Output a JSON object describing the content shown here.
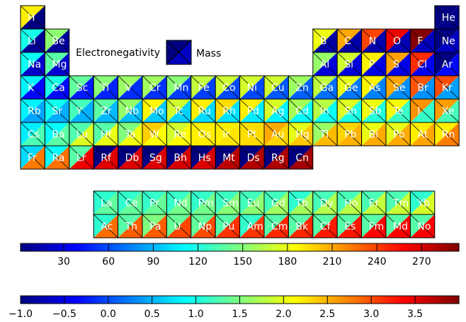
{
  "chart_data": {
    "type": "heatmap",
    "title": "",
    "legend": {
      "electronegativity_label": "Electronegativity",
      "mass_label": "Mass",
      "swatch_electronegativity_value": -1.0,
      "swatch_mass_value": 20
    },
    "mass_colorbar": {
      "min": 1,
      "max": 295,
      "ticks": [
        30,
        60,
        90,
        120,
        150,
        180,
        210,
        240,
        270
      ]
    },
    "electronegativity_colorbar": {
      "min": -1.0,
      "max": 4.0,
      "ticks": [
        -1.0,
        -0.5,
        0.0,
        0.5,
        1.0,
        1.5,
        2.0,
        2.5,
        3.0,
        3.5
      ]
    },
    "missing_electronegativity_value": -1.0,
    "elements": [
      {
        "symbol": "H",
        "group": 1,
        "period": 1,
        "mass": 1.008,
        "electronegativity": 2.2
      },
      {
        "symbol": "He",
        "group": 18,
        "period": 1,
        "mass": 4.003,
        "electronegativity": null
      },
      {
        "symbol": "Li",
        "group": 1,
        "period": 2,
        "mass": 6.94,
        "electronegativity": 0.98
      },
      {
        "symbol": "Be",
        "group": 2,
        "period": 2,
        "mass": 9.012,
        "electronegativity": 1.57
      },
      {
        "symbol": "B",
        "group": 13,
        "period": 2,
        "mass": 10.81,
        "electronegativity": 2.04
      },
      {
        "symbol": "C",
        "group": 14,
        "period": 2,
        "mass": 12.011,
        "electronegativity": 2.55
      },
      {
        "symbol": "N",
        "group": 15,
        "period": 2,
        "mass": 14.007,
        "electronegativity": 3.04
      },
      {
        "symbol": "O",
        "group": 16,
        "period": 2,
        "mass": 15.999,
        "electronegativity": 3.44
      },
      {
        "symbol": "F",
        "group": 17,
        "period": 2,
        "mass": 18.998,
        "electronegativity": 3.98
      },
      {
        "symbol": "Ne",
        "group": 18,
        "period": 2,
        "mass": 20.18,
        "electronegativity": null
      },
      {
        "symbol": "Na",
        "group": 1,
        "period": 3,
        "mass": 22.99,
        "electronegativity": 0.93
      },
      {
        "symbol": "Mg",
        "group": 2,
        "period": 3,
        "mass": 24.305,
        "electronegativity": 1.31
      },
      {
        "symbol": "Al",
        "group": 13,
        "period": 3,
        "mass": 26.982,
        "electronegativity": 1.61
      },
      {
        "symbol": "Si",
        "group": 14,
        "period": 3,
        "mass": 28.085,
        "electronegativity": 1.9
      },
      {
        "symbol": "P",
        "group": 15,
        "period": 3,
        "mass": 30.974,
        "electronegativity": 2.19
      },
      {
        "symbol": "S",
        "group": 16,
        "period": 3,
        "mass": 32.06,
        "electronegativity": 2.58
      },
      {
        "symbol": "Cl",
        "group": 17,
        "period": 3,
        "mass": 35.45,
        "electronegativity": 3.16
      },
      {
        "symbol": "Ar",
        "group": 18,
        "period": 3,
        "mass": 39.948,
        "electronegativity": null
      },
      {
        "symbol": "K",
        "group": 1,
        "period": 4,
        "mass": 39.098,
        "electronegativity": 0.82
      },
      {
        "symbol": "Ca",
        "group": 2,
        "period": 4,
        "mass": 40.078,
        "electronegativity": 1.0
      },
      {
        "symbol": "Sc",
        "group": 3,
        "period": 4,
        "mass": 44.956,
        "electronegativity": 1.36
      },
      {
        "symbol": "Ti",
        "group": 4,
        "period": 4,
        "mass": 47.867,
        "electronegativity": 1.54
      },
      {
        "symbol": "V",
        "group": 5,
        "period": 4,
        "mass": 50.942,
        "electronegativity": 1.63
      },
      {
        "symbol": "Cr",
        "group": 6,
        "period": 4,
        "mass": 51.996,
        "electronegativity": 1.66
      },
      {
        "symbol": "Mn",
        "group": 7,
        "period": 4,
        "mass": 54.938,
        "electronegativity": 1.55
      },
      {
        "symbol": "Fe",
        "group": 8,
        "period": 4,
        "mass": 55.845,
        "electronegativity": 1.83
      },
      {
        "symbol": "Co",
        "group": 9,
        "period": 4,
        "mass": 58.933,
        "electronegativity": 1.88
      },
      {
        "symbol": "Ni",
        "group": 10,
        "period": 4,
        "mass": 58.693,
        "electronegativity": 1.91
      },
      {
        "symbol": "Cu",
        "group": 11,
        "period": 4,
        "mass": 63.546,
        "electronegativity": 1.9
      },
      {
        "symbol": "Zn",
        "group": 12,
        "period": 4,
        "mass": 65.38,
        "electronegativity": 1.65
      },
      {
        "symbol": "Ga",
        "group": 13,
        "period": 4,
        "mass": 69.723,
        "electronegativity": 1.81
      },
      {
        "symbol": "Ge",
        "group": 14,
        "period": 4,
        "mass": 72.63,
        "electronegativity": 2.01
      },
      {
        "symbol": "As",
        "group": 15,
        "period": 4,
        "mass": 74.922,
        "electronegativity": 2.18
      },
      {
        "symbol": "Se",
        "group": 16,
        "period": 4,
        "mass": 78.971,
        "electronegativity": 2.55
      },
      {
        "symbol": "Br",
        "group": 17,
        "period": 4,
        "mass": 79.904,
        "electronegativity": 2.96
      },
      {
        "symbol": "Kr",
        "group": 18,
        "period": 4,
        "mass": 83.798,
        "electronegativity": 3.0
      },
      {
        "symbol": "Rb",
        "group": 1,
        "period": 5,
        "mass": 85.468,
        "electronegativity": 0.82
      },
      {
        "symbol": "Sr",
        "group": 2,
        "period": 5,
        "mass": 87.62,
        "electronegativity": 0.95
      },
      {
        "symbol": "Y",
        "group": 3,
        "period": 5,
        "mass": 88.906,
        "electronegativity": 1.22
      },
      {
        "symbol": "Zr",
        "group": 4,
        "period": 5,
        "mass": 91.224,
        "electronegativity": 1.33
      },
      {
        "symbol": "Nb",
        "group": 5,
        "period": 5,
        "mass": 92.906,
        "electronegativity": 1.6
      },
      {
        "symbol": "Mo",
        "group": 6,
        "period": 5,
        "mass": 95.95,
        "electronegativity": 2.16
      },
      {
        "symbol": "Tc",
        "group": 7,
        "period": 5,
        "mass": 98,
        "electronegativity": 1.9
      },
      {
        "symbol": "Ru",
        "group": 8,
        "period": 5,
        "mass": 101.07,
        "electronegativity": 2.2
      },
      {
        "symbol": "Rh",
        "group": 9,
        "period": 5,
        "mass": 102.91,
        "electronegativity": 2.28
      },
      {
        "symbol": "Pd",
        "group": 10,
        "period": 5,
        "mass": 106.42,
        "electronegativity": 2.2
      },
      {
        "symbol": "Ag",
        "group": 11,
        "period": 5,
        "mass": 107.87,
        "electronegativity": 1.93
      },
      {
        "symbol": "Cd",
        "group": 12,
        "period": 5,
        "mass": 112.41,
        "electronegativity": 1.69
      },
      {
        "symbol": "In",
        "group": 13,
        "period": 5,
        "mass": 114.82,
        "electronegativity": 1.78
      },
      {
        "symbol": "Sn",
        "group": 14,
        "period": 5,
        "mass": 118.71,
        "electronegativity": 1.96
      },
      {
        "symbol": "Sb",
        "group": 15,
        "period": 5,
        "mass": 121.76,
        "electronegativity": 2.05
      },
      {
        "symbol": "Te",
        "group": 16,
        "period": 5,
        "mass": 127.6,
        "electronegativity": 2.1
      },
      {
        "symbol": "I",
        "group": 17,
        "period": 5,
        "mass": 126.9,
        "electronegativity": 2.66
      },
      {
        "symbol": "Xe",
        "group": 18,
        "period": 5,
        "mass": 131.29,
        "electronegativity": 2.6
      },
      {
        "symbol": "Cs",
        "group": 1,
        "period": 6,
        "mass": 132.91,
        "electronegativity": 0.79
      },
      {
        "symbol": "Ba",
        "group": 2,
        "period": 6,
        "mass": 137.33,
        "electronegativity": 0.89
      },
      {
        "symbol": "Lu",
        "group": 3,
        "period": 6,
        "mass": 174.97,
        "electronegativity": 1.27
      },
      {
        "symbol": "Hf",
        "group": 4,
        "period": 6,
        "mass": 178.49,
        "electronegativity": 1.3
      },
      {
        "symbol": "Ta",
        "group": 5,
        "period": 6,
        "mass": 180.95,
        "electronegativity": 1.5
      },
      {
        "symbol": "W",
        "group": 6,
        "period": 6,
        "mass": 183.84,
        "electronegativity": 2.36
      },
      {
        "symbol": "Re",
        "group": 7,
        "period": 6,
        "mass": 186.21,
        "electronegativity": 1.9
      },
      {
        "symbol": "Os",
        "group": 8,
        "period": 6,
        "mass": 190.23,
        "electronegativity": 2.2
      },
      {
        "symbol": "Ir",
        "group": 9,
        "period": 6,
        "mass": 192.22,
        "electronegativity": 2.2
      },
      {
        "symbol": "Pt",
        "group": 10,
        "period": 6,
        "mass": 195.08,
        "electronegativity": 2.28
      },
      {
        "symbol": "Au",
        "group": 11,
        "period": 6,
        "mass": 196.97,
        "electronegativity": 2.54
      },
      {
        "symbol": "Hg",
        "group": 12,
        "period": 6,
        "mass": 200.59,
        "electronegativity": 2.0
      },
      {
        "symbol": "Tl",
        "group": 13,
        "period": 6,
        "mass": 204.38,
        "electronegativity": 1.62
      },
      {
        "symbol": "Pb",
        "group": 14,
        "period": 6,
        "mass": 207.2,
        "electronegativity": 2.33
      },
      {
        "symbol": "Bi",
        "group": 15,
        "period": 6,
        "mass": 208.98,
        "electronegativity": 2.02
      },
      {
        "symbol": "Po",
        "group": 16,
        "period": 6,
        "mass": 209,
        "electronegativity": 2.0
      },
      {
        "symbol": "At",
        "group": 17,
        "period": 6,
        "mass": 210,
        "electronegativity": 2.2
      },
      {
        "symbol": "Rn",
        "group": 18,
        "period": 6,
        "mass": 222,
        "electronegativity": 2.2
      },
      {
        "symbol": "Fr",
        "group": 1,
        "period": 7,
        "mass": 223,
        "electronegativity": 0.7
      },
      {
        "symbol": "Ra",
        "group": 2,
        "period": 7,
        "mass": 226,
        "electronegativity": 0.9
      },
      {
        "symbol": "Lr",
        "group": 3,
        "period": 7,
        "mass": 262,
        "electronegativity": 1.3
      },
      {
        "symbol": "Rf",
        "group": 4,
        "period": 7,
        "mass": 267,
        "electronegativity": null
      },
      {
        "symbol": "Db",
        "group": 5,
        "period": 7,
        "mass": 268,
        "electronegativity": null
      },
      {
        "symbol": "Sg",
        "group": 6,
        "period": 7,
        "mass": 269,
        "electronegativity": null
      },
      {
        "symbol": "Bh",
        "group": 7,
        "period": 7,
        "mass": 270,
        "electronegativity": null
      },
      {
        "symbol": "Hs",
        "group": 8,
        "period": 7,
        "mass": 269,
        "electronegativity": null
      },
      {
        "symbol": "Mt",
        "group": 9,
        "period": 7,
        "mass": 278,
        "electronegativity": null
      },
      {
        "symbol": "Ds",
        "group": 10,
        "period": 7,
        "mass": 281,
        "electronegativity": null
      },
      {
        "symbol": "Rg",
        "group": 11,
        "period": 7,
        "mass": 282,
        "electronegativity": null
      },
      {
        "symbol": "Cn",
        "group": 12,
        "period": 7,
        "mass": 285,
        "electronegativity": null
      },
      {
        "symbol": "La",
        "group": 4,
        "period": 9,
        "mass": 138.91,
        "electronegativity": 1.1
      },
      {
        "symbol": "Ce",
        "group": 5,
        "period": 9,
        "mass": 140.12,
        "electronegativity": 1.12
      },
      {
        "symbol": "Pr",
        "group": 6,
        "period": 9,
        "mass": 140.91,
        "electronegativity": 1.13
      },
      {
        "symbol": "Nd",
        "group": 7,
        "period": 9,
        "mass": 144.24,
        "electronegativity": 1.14
      },
      {
        "symbol": "Pm",
        "group": 8,
        "period": 9,
        "mass": 145,
        "electronegativity": 1.13
      },
      {
        "symbol": "Sm",
        "group": 9,
        "period": 9,
        "mass": 150.36,
        "electronegativity": 1.17
      },
      {
        "symbol": "Eu",
        "group": 10,
        "period": 9,
        "mass": 151.96,
        "electronegativity": 1.2
      },
      {
        "symbol": "Gd",
        "group": 11,
        "period": 9,
        "mass": 157.25,
        "electronegativity": 1.2
      },
      {
        "symbol": "Tb",
        "group": 12,
        "period": 9,
        "mass": 158.93,
        "electronegativity": 1.1
      },
      {
        "symbol": "Dy",
        "group": 13,
        "period": 9,
        "mass": 162.5,
        "electronegativity": 1.22
      },
      {
        "symbol": "Ho",
        "group": 14,
        "period": 9,
        "mass": 164.93,
        "electronegativity": 1.23
      },
      {
        "symbol": "Er",
        "group": 15,
        "period": 9,
        "mass": 167.26,
        "electronegativity": 1.24
      },
      {
        "symbol": "Tm",
        "group": 16,
        "period": 9,
        "mass": 168.93,
        "electronegativity": 1.25
      },
      {
        "symbol": "Yb",
        "group": 17,
        "period": 9,
        "mass": 173.05,
        "electronegativity": 1.1
      },
      {
        "symbol": "Ac",
        "group": 4,
        "period": 10,
        "mass": 227,
        "electronegativity": 1.1
      },
      {
        "symbol": "Th",
        "group": 5,
        "period": 10,
        "mass": 232.04,
        "electronegativity": 1.3
      },
      {
        "symbol": "Pa",
        "group": 6,
        "period": 10,
        "mass": 231.04,
        "electronegativity": 1.5
      },
      {
        "symbol": "U",
        "group": 7,
        "period": 10,
        "mass": 238.03,
        "electronegativity": 1.38
      },
      {
        "symbol": "Np",
        "group": 8,
        "period": 10,
        "mass": 237,
        "electronegativity": 1.36
      },
      {
        "symbol": "Pu",
        "group": 9,
        "period": 10,
        "mass": 244,
        "electronegativity": 1.28
      },
      {
        "symbol": "Am",
        "group": 10,
        "period": 10,
        "mass": 243,
        "electronegativity": 1.13
      },
      {
        "symbol": "Cm",
        "group": 11,
        "period": 10,
        "mass": 247,
        "electronegativity": 1.28
      },
      {
        "symbol": "Bk",
        "group": 12,
        "period": 10,
        "mass": 247,
        "electronegativity": 1.3
      },
      {
        "symbol": "Cf",
        "group": 13,
        "period": 10,
        "mass": 251,
        "electronegativity": 1.3
      },
      {
        "symbol": "Es",
        "group": 14,
        "period": 10,
        "mass": 252,
        "electronegativity": 1.3
      },
      {
        "symbol": "Fm",
        "group": 15,
        "period": 10,
        "mass": 257,
        "electronegativity": 1.3
      },
      {
        "symbol": "Md",
        "group": 16,
        "period": 10,
        "mass": 258,
        "electronegativity": 1.3
      },
      {
        "symbol": "No",
        "group": 17,
        "period": 10,
        "mass": 259,
        "electronegativity": 1.3
      }
    ]
  }
}
